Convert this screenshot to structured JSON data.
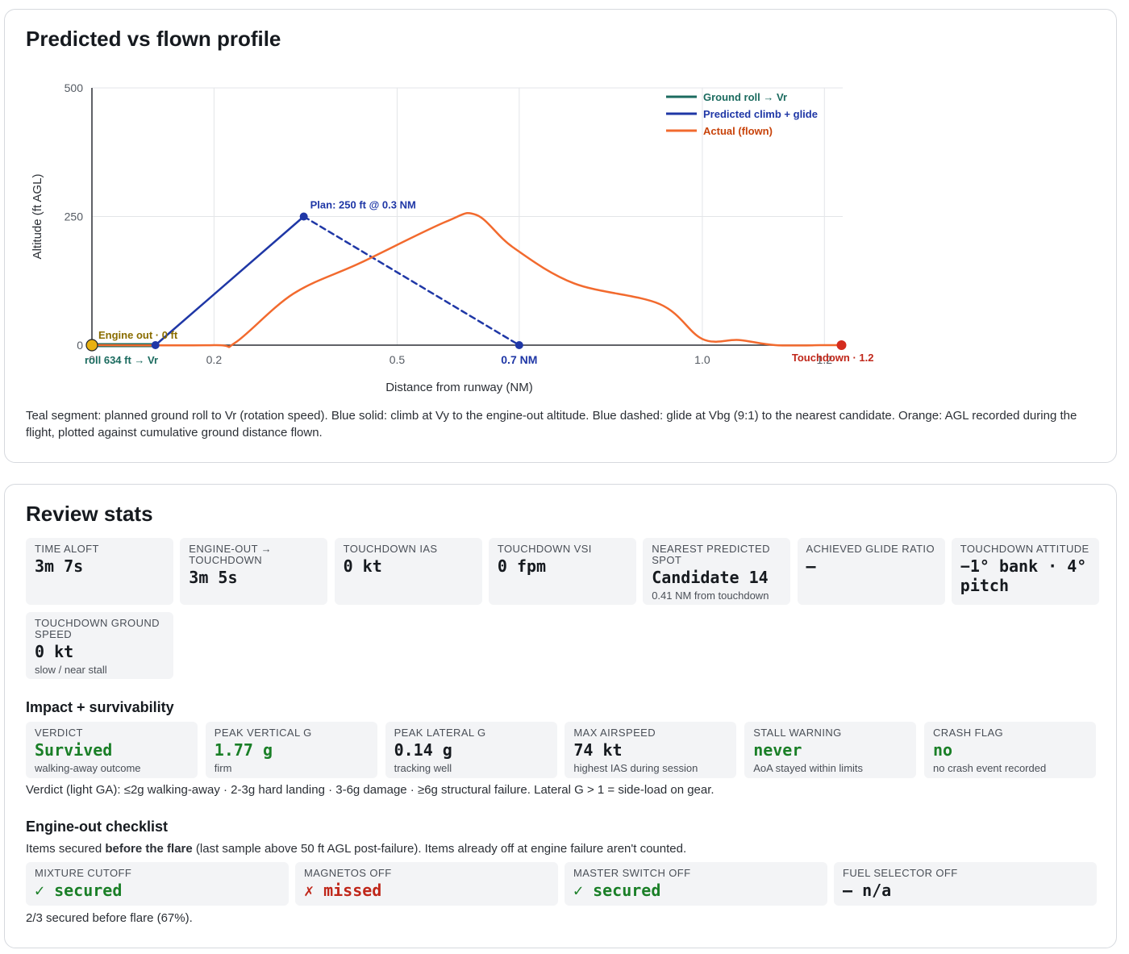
{
  "profile": {
    "title": "Predicted vs flown profile",
    "caption": "Teal segment: planned ground roll to Vr (rotation speed). Blue solid: climb at Vy to the engine-out altitude. Blue dashed: glide at Vbg (9:1) to the nearest candidate. Orange: AGL recorded during the flight, plotted against cumulative ground distance flown."
  },
  "chart_data": {
    "type": "line",
    "title": "",
    "xlabel": "Distance from runway (NM)",
    "ylabel": "Altitude (ft AGL)",
    "xlim": [
      0,
      1.23
    ],
    "ylim": [
      0,
      500
    ],
    "x_ticks": [
      0,
      0.2,
      0.5,
      0.7,
      1.0,
      1.2
    ],
    "x_tick_labels": [
      "0",
      "0.2",
      "0.5",
      "0.7 NM",
      "1.0",
      "1.2"
    ],
    "y_ticks": [
      0,
      250,
      500
    ],
    "y_tick_labels": [
      "0",
      "250",
      "500"
    ],
    "grid": true,
    "legend_position": "top-right",
    "colors": {
      "ground_roll": "#1b6b5f",
      "predicted": "#1f37a6",
      "actual": "#f26a2e",
      "engine_out": "#e8b111",
      "touchdown": "#d42c1e",
      "engine_out_text": "#8a6d00",
      "touchdown_text": "#c0271a"
    },
    "series": [
      {
        "name": "Ground roll → Vr",
        "key": "ground_roll",
        "style": "solid",
        "x": [
          0,
          0.104
        ],
        "y": [
          0,
          0
        ]
      },
      {
        "name": "Predicted climb + glide",
        "key": "predicted",
        "style": "solid",
        "x": [
          0.104,
          0.347
        ],
        "y": [
          0,
          250
        ]
      },
      {
        "name": "",
        "key": "predicted",
        "style": "dashed",
        "x": [
          0.347,
          0.7
        ],
        "y": [
          250,
          0
        ]
      },
      {
        "name": "Actual (flown)",
        "key": "actual",
        "style": "solid",
        "x": [
          0,
          0.2,
          0.235,
          0.33,
          0.44,
          0.58,
          0.63,
          0.69,
          0.79,
          0.93,
          1.0,
          1.06,
          1.12,
          1.2,
          1.228
        ],
        "y": [
          0,
          0,
          5,
          100,
          160,
          240,
          253,
          190,
          120,
          80,
          12,
          10,
          0,
          0,
          0
        ]
      }
    ],
    "points": [
      {
        "x": 0,
        "y": 0,
        "key": "engine_out",
        "label": "Engine out · 0 ft"
      },
      {
        "x": 0.104,
        "y": 0,
        "key": "predicted",
        "label": "roll 634 ft → Vr"
      },
      {
        "x": 0.347,
        "y": 250,
        "key": "predicted",
        "label": "Plan: 250 ft @ 0.3 NM"
      },
      {
        "x": 0.7,
        "y": 0,
        "key": "predicted",
        "label": ""
      },
      {
        "x": 1.228,
        "y": 0,
        "key": "touchdown",
        "label": "Touchdown · 1.2"
      }
    ]
  },
  "stats": {
    "title": "Review stats",
    "cards": [
      {
        "label": "TIME ALOFT",
        "value": "3m 7s",
        "sub": ""
      },
      {
        "label": "ENGINE-OUT → TOUCHDOWN",
        "value": "3m 5s",
        "sub": ""
      },
      {
        "label": "TOUCHDOWN IAS",
        "value": "0 kt",
        "sub": ""
      },
      {
        "label": "TOUCHDOWN VSI",
        "value": "0 fpm",
        "sub": ""
      },
      {
        "label": "NEAREST PREDICTED SPOT",
        "value": "Candidate 14",
        "sub": "0.41 NM from touchdown"
      },
      {
        "label": "ACHIEVED GLIDE RATIO",
        "value": "—",
        "sub": ""
      },
      {
        "label": "TOUCHDOWN ATTITUDE",
        "value": "−1° bank · 4° pitch",
        "sub": ""
      },
      {
        "label": "TOUCHDOWN GROUND SPEED",
        "value": "0 kt",
        "sub": "slow / near stall"
      }
    ]
  },
  "impact": {
    "title": "Impact + survivability",
    "cards": [
      {
        "label": "VERDICT",
        "value": "Survived",
        "sub": "walking-away outcome",
        "tone": "green"
      },
      {
        "label": "PEAK VERTICAL G",
        "value": "1.77 g",
        "sub": "firm",
        "tone": "green"
      },
      {
        "label": "PEAK LATERAL G",
        "value": "0.14 g",
        "sub": "tracking well",
        "tone": ""
      },
      {
        "label": "MAX AIRSPEED",
        "value": "74 kt",
        "sub": "highest IAS during session",
        "tone": ""
      },
      {
        "label": "STALL WARNING",
        "value": "never",
        "sub": "AoA stayed within limits",
        "tone": "green"
      },
      {
        "label": "CRASH FLAG",
        "value": "no",
        "sub": "no crash event recorded",
        "tone": "green"
      }
    ],
    "note": "Verdict (light GA): ≤2g walking-away · 2-3g hard landing · 3-6g damage · ≥6g structural failure. Lateral G > 1 = side-load on gear."
  },
  "checklist": {
    "title": "Engine-out checklist",
    "intro_before": "Items secured ",
    "intro_bold": "before the flare",
    "intro_after": " (last sample above 50 ft AGL post-failure). Items already off at engine failure aren't counted.",
    "items": [
      {
        "label": "MIXTURE CUTOFF",
        "value": "✓ secured",
        "tone": "green"
      },
      {
        "label": "MAGNETOS OFF",
        "value": "✗ missed",
        "tone": "red"
      },
      {
        "label": "MASTER SWITCH OFF",
        "value": "✓ secured",
        "tone": "green"
      },
      {
        "label": "FUEL SELECTOR OFF",
        "value": "— n/a",
        "tone": ""
      }
    ],
    "summary": "2/3 secured before flare (67%)."
  }
}
